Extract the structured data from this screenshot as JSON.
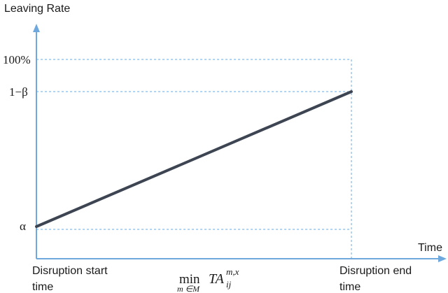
{
  "chart_data": {
    "type": "line",
    "ylabel": "Leaving Rate",
    "xlabel": "Time",
    "y_ticks": [
      "100%",
      "1−β",
      "α"
    ],
    "x_ticks": {
      "start": [
        "Disruption start",
        "time"
      ],
      "end": [
        "Disruption end",
        "time"
      ],
      "middle": {
        "op": "min",
        "sub": "m ∈M",
        "base": "TA",
        "sup": "m,x",
        "subscript": "ij"
      }
    },
    "series": [
      {
        "x": [
          "Disruption start time",
          "Disruption end time"
        ],
        "y": [
          "α",
          "1−β"
        ]
      }
    ],
    "grid": "dashed reference lines",
    "colors": {
      "axis": "#6fa8dc",
      "line": "#3d4452",
      "guide": "#6fa8dc"
    }
  }
}
